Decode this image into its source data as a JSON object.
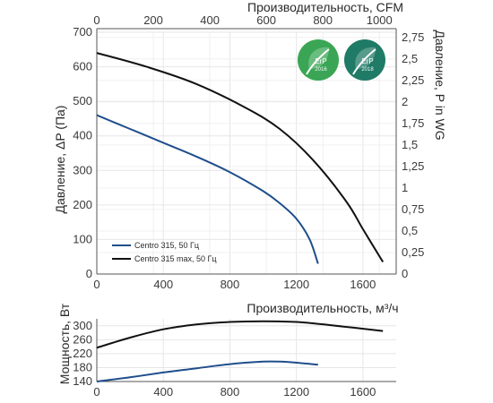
{
  "chart_data": [
    {
      "type": "line",
      "x_unit": "m³/h",
      "xlabel": "Производительность, м³/ч",
      "xticks": [
        0,
        400,
        800,
        1200,
        1600
      ],
      "xlim": [
        0,
        1800
      ],
      "x2label": "Производительность, CFM",
      "x2ticks": [
        0,
        200,
        400,
        600,
        800,
        1000
      ],
      "x2lim": [
        0,
        1059.5
      ],
      "ylabel": "Давление, ΔP (Па)",
      "yticks": [
        0,
        100,
        200,
        300,
        400,
        500,
        600,
        700
      ],
      "ylim": [
        0,
        700
      ],
      "y2label": "Давление,  P in WG",
      "y2ticks": [
        "0",
        "0,25",
        "0,5",
        "0,75",
        "1",
        "1,25",
        "1,5",
        "1,75",
        "2",
        "2,25",
        "2,5",
        "2,75"
      ],
      "y2lim": [
        0,
        2.81
      ],
      "grid": true,
      "legend_position": "bottom-left",
      "series": [
        {
          "name": "Centro 315, 50 Гц",
          "color": "#1f4e8c",
          "points": [
            [
              0,
              460
            ],
            [
              200,
              420
            ],
            [
              400,
              380
            ],
            [
              600,
              340
            ],
            [
              800,
              295
            ],
            [
              1000,
              240
            ],
            [
              1100,
              205
            ],
            [
              1200,
              160
            ],
            [
              1280,
              100
            ],
            [
              1330,
              30
            ]
          ]
        },
        {
          "name": "Centro 315 max, 50 Гц",
          "color": "#111111",
          "points": [
            [
              0,
              640
            ],
            [
              300,
              600
            ],
            [
              600,
              550
            ],
            [
              900,
              480
            ],
            [
              1100,
              420
            ],
            [
              1300,
              330
            ],
            [
              1500,
              210
            ],
            [
              1600,
              130
            ],
            [
              1720,
              35
            ]
          ]
        }
      ]
    },
    {
      "type": "line",
      "xlabel": "",
      "xticks": [
        0,
        400,
        800,
        1200,
        1600
      ],
      "xlim": [
        0,
        1800
      ],
      "ylabel": "Мощность, Вт",
      "yticks": [
        140,
        180,
        220,
        260,
        300
      ],
      "ylim": [
        140,
        320
      ],
      "grid": true,
      "series": [
        {
          "name": "Centro 315, 50 Гц",
          "color": "#1f4e8c",
          "points": [
            [
              0,
              140
            ],
            [
              200,
              152
            ],
            [
              400,
              166
            ],
            [
              600,
              178
            ],
            [
              800,
              190
            ],
            [
              1000,
              197
            ],
            [
              1100,
              197
            ],
            [
              1200,
              194
            ],
            [
              1330,
              188
            ]
          ]
        },
        {
          "name": "Centro 315 max, 50 Гц",
          "color": "#111111",
          "points": [
            [
              0,
              237
            ],
            [
              200,
              266
            ],
            [
              400,
              290
            ],
            [
              600,
              304
            ],
            [
              800,
              311
            ],
            [
              1000,
              313
            ],
            [
              1200,
              311
            ],
            [
              1400,
              302
            ],
            [
              1720,
              285
            ]
          ]
        }
      ]
    }
  ],
  "badges": [
    {
      "text": "ErP",
      "year": "2016",
      "color": "#3aa655"
    },
    {
      "text": "ErP",
      "year": "2018",
      "color": "#1f7a66"
    }
  ]
}
